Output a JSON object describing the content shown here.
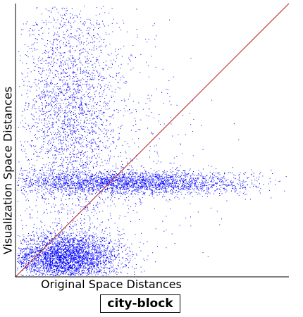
{
  "chart_data": {
    "type": "scatter",
    "xlabel": "Original Space Distances",
    "ylabel": "Visualization Space Distances",
    "title": "city-block",
    "xlim": [
      0,
      1
    ],
    "ylim": [
      0,
      1
    ],
    "reference_line": {
      "from": [
        0,
        0
      ],
      "to": [
        1,
        1
      ],
      "color": "#b22222"
    },
    "point_color": "#0000ff",
    "grid": false,
    "clusters": [
      {
        "name": "dense-lower-left",
        "count": 3600,
        "x_mean": 0.18,
        "x_sd": 0.1,
        "y_mean": 0.07,
        "y_sd": 0.045
      },
      {
        "name": "horizontal-band",
        "count": 2600,
        "x_mean": 0.42,
        "x_sd": 0.22,
        "y_mean": 0.345,
        "y_sd": 0.022
      },
      {
        "name": "upper-vertical-spread",
        "count": 2400,
        "x_mean": 0.2,
        "x_sd": 0.09,
        "y_mean": 0.62,
        "y_sd": 0.22
      },
      {
        "name": "background",
        "count": 800,
        "x_mean": 0.3,
        "x_sd": 0.18,
        "y_mean": 0.45,
        "y_sd": 0.25
      }
    ]
  }
}
